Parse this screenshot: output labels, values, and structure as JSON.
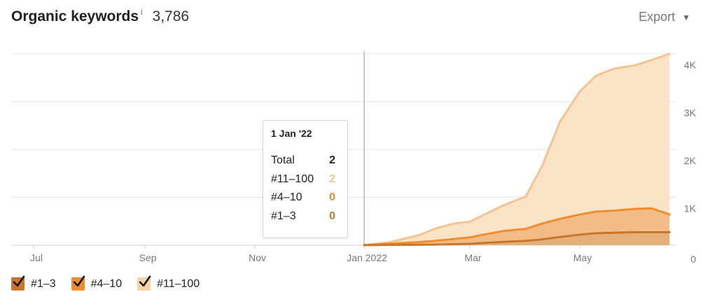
{
  "header": {
    "title": "Organic keywords",
    "info_mark": "i",
    "total": "3,786",
    "export_label": "Export"
  },
  "tooltip": {
    "date": "1 Jan '22",
    "rows": [
      {
        "label": "Total",
        "value": "2",
        "color": "#222222"
      },
      {
        "label": "#11–100",
        "value": "2",
        "color": "#f4c48e"
      },
      {
        "label": "#4–10",
        "value": "0",
        "color": "#ef8c2c"
      },
      {
        "label": "#1–3",
        "value": "0",
        "color": "#c9762c"
      }
    ]
  },
  "legend": [
    {
      "label": "#1–3",
      "checked": true,
      "color": "#c9762c"
    },
    {
      "label": "#4–10",
      "checked": true,
      "color": "#ef8c2c"
    },
    {
      "label": "#11–100",
      "checked": true,
      "color": "#f9d3a5"
    }
  ],
  "chart_data": {
    "type": "area",
    "stacked": true,
    "x_tick_labels": [
      "Jul",
      "Sep",
      "Nov",
      "Jan 2022",
      "Mar",
      "May"
    ],
    "y_tick_labels": [
      "0",
      "1K",
      "2K",
      "3K",
      "4K"
    ],
    "ylim": [
      0,
      4000
    ],
    "grid": true,
    "legend_position": "bottom-left",
    "cursor_date": "2022-01-01",
    "x": [
      "2022-01-01",
      "2022-01-15",
      "2022-02-01",
      "2022-02-10",
      "2022-02-20",
      "2022-03-01",
      "2022-03-10",
      "2022-03-20",
      "2022-04-01",
      "2022-04-10",
      "2022-04-20",
      "2022-05-01",
      "2022-05-10",
      "2022-05-20",
      "2022-06-01",
      "2022-06-10",
      "2022-06-20"
    ],
    "series": [
      {
        "name": "#1–3",
        "color": "#c9762c",
        "values": [
          0,
          5,
          10,
          12,
          20,
          28,
          50,
          70,
          90,
          120,
          170,
          220,
          250,
          260,
          270,
          270,
          270
        ]
      },
      {
        "name": "#4–10",
        "color": "#ef8c2c",
        "values": [
          0,
          25,
          55,
          80,
          110,
          135,
          180,
          230,
          250,
          330,
          380,
          420,
          450,
          460,
          490,
          500,
          370
        ]
      },
      {
        "name": "#11–100",
        "color": "#f4c48e",
        "values": [
          2,
          30,
          150,
          260,
          320,
          330,
          430,
          540,
          680,
          1200,
          2030,
          2570,
          2840,
          2970,
          3000,
          3100,
          3360
        ]
      }
    ]
  },
  "colors": {
    "grid": "#e6e6e6",
    "axis_text": "#777777",
    "cursor_line": "#999999"
  }
}
